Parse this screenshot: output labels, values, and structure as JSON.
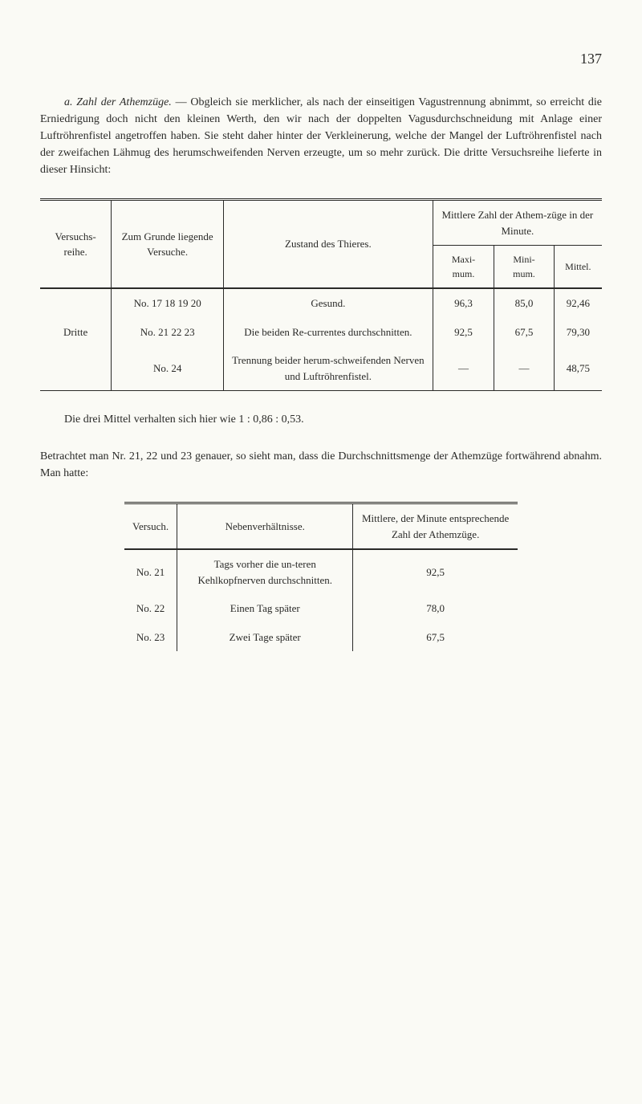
{
  "page_number": "137",
  "para1_prefix": "a. ",
  "para1_italic": "Zahl der Athemzüge.",
  "para1_rest": " — Obgleich sie merklicher, als nach der einseitigen Vagustrennung abnimmt, so erreicht die Erniedrigung doch nicht den kleinen Werth, den wir nach der doppelten Vagusdurchschneidung mit Anlage einer Luftröhrenfistel angetroffen haben. Sie steht daher hinter der Verkleinerung, welche der Mangel der Luftröhrenfistel nach der zweifachen Lähmug des herumschweifenden Nerven erzeugte, um so mehr zurück. Die dritte Versuchsreihe lieferte in dieser Hinsicht:",
  "table1": {
    "headers": {
      "col1": "Versuchs-reihe.",
      "col2": "Zum Grunde liegende Versuche.",
      "col3": "Zustand des Thieres.",
      "col_group": "Mittlere Zahl der Athem-züge in der Minute.",
      "sub1": "Maxi-mum.",
      "sub2": "Mini-mum.",
      "sub3": "Mittel."
    },
    "rows": [
      {
        "reihe": "",
        "grunde": "No. 17 18 19 20",
        "zustand": "Gesund.",
        "max": "96,3",
        "min": "85,0",
        "mittel": "92,46"
      },
      {
        "reihe": "Dritte",
        "grunde": "No. 21 22 23",
        "zustand": "Die beiden Re-currentes durchschnitten.",
        "max": "92,5",
        "min": "67,5",
        "mittel": "79,30"
      },
      {
        "reihe": "",
        "grunde": "No. 24",
        "zustand": "Trennung beider herum-schweifenden Nerven und Luftröhrenfistel.",
        "max": "—",
        "min": "—",
        "mittel": "48,75"
      }
    ]
  },
  "para2": "Die drei Mittel verhalten sich hier wie 1 : 0,86 : 0,53.",
  "para3": "Betrachtet man Nr. 21, 22 und 23 genauer, so sieht man, dass die Durchschnittsmenge der Athemzüge fortwährend abnahm. Man hatte:",
  "table2": {
    "headers": {
      "col1": "Versuch.",
      "col2": "Nebenverhältnisse.",
      "col3": "Mittlere, der Minute entsprechende Zahl der Athemzüge."
    },
    "rows": [
      {
        "versuch": "No. 21",
        "neben": "Tags vorher die un-teren Kehlkopfnerven durchschnitten.",
        "mittel": "92,5"
      },
      {
        "versuch": "No. 22",
        "neben": "Einen Tag später",
        "mittel": "78,0"
      },
      {
        "versuch": "No. 23",
        "neben": "Zwei Tage später",
        "mittel": "67,5"
      }
    ]
  }
}
